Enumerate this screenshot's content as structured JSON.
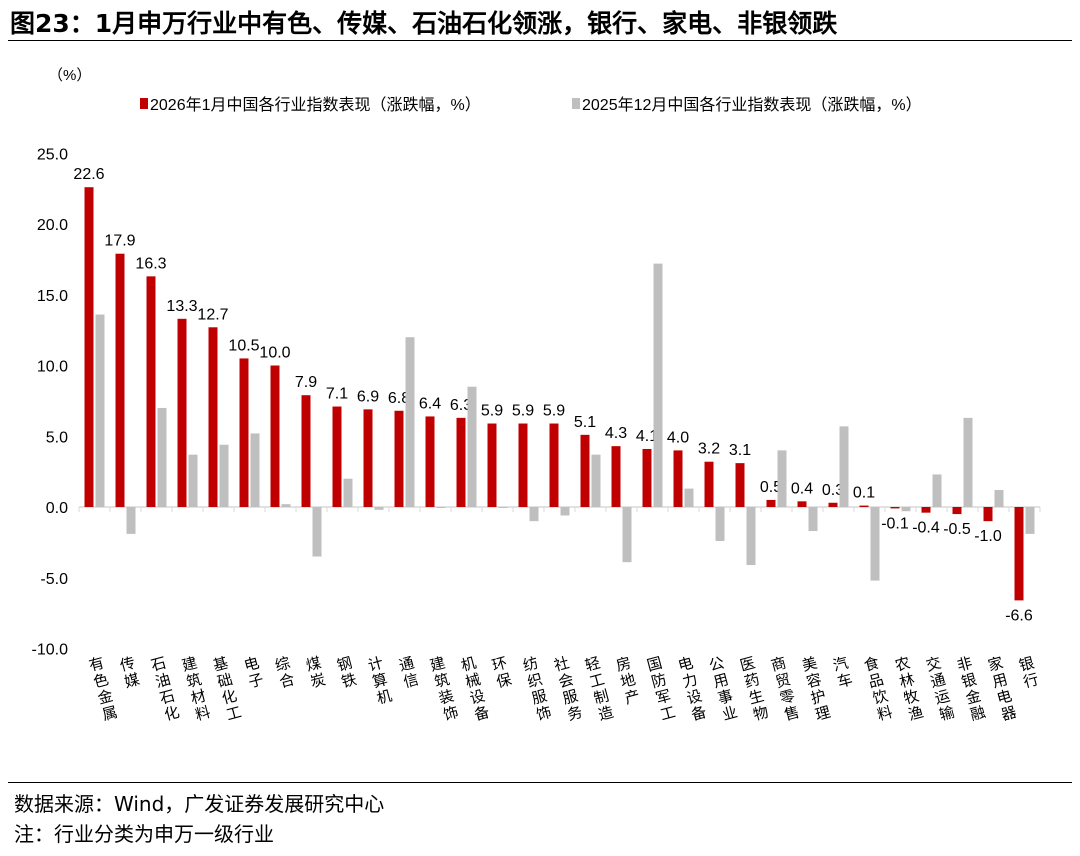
{
  "title": "图23：1月申万行业中有色、传媒、石油石化领涨，银行、家电、非银领跌",
  "footer": {
    "source": "数据来源：Wind，广发证券发展研究中心",
    "note": "注：行业分类为申万一级行业"
  },
  "chart_data": {
    "type": "bar",
    "ylabel": "（%）",
    "ylim": [
      -10,
      25
    ],
    "yticks": [
      "-10.0",
      "-5.0",
      "0.0",
      "5.0",
      "10.0",
      "15.0",
      "20.0",
      "25.0"
    ],
    "grid": false,
    "legend_position": "top",
    "categories": [
      "有色金属",
      "传媒",
      "石油石化",
      "建筑材料",
      "基础化工",
      "电子",
      "综合",
      "煤炭",
      "钢铁",
      "计算机",
      "通信",
      "建筑装饰",
      "机械设备",
      "环保",
      "纺织服饰",
      "社会服务",
      "轻工制造",
      "房地产",
      "国防军工",
      "电力设备",
      "公用事业",
      "医药生物",
      "商贸零售",
      "美容护理",
      "汽车",
      "食品饮料",
      "农林牧渔",
      "交通运输",
      "非银金融",
      "家用电器",
      "银行"
    ],
    "series": [
      {
        "name": "2026年1月中国各行业指数表现（涨跌幅，%）",
        "color": "#C00000",
        "data_labels": true,
        "values": [
          22.6,
          17.9,
          16.3,
          13.3,
          12.7,
          10.5,
          10.0,
          7.9,
          7.1,
          6.9,
          6.8,
          6.4,
          6.3,
          5.9,
          5.9,
          5.9,
          5.1,
          4.3,
          4.1,
          4.0,
          3.2,
          3.1,
          0.5,
          0.4,
          0.3,
          0.1,
          -0.1,
          -0.4,
          -0.5,
          -1.0,
          -6.6
        ]
      },
      {
        "name": "2025年12月中国各行业指数表现（涨跌幅，%）",
        "color": "#BFBFBF",
        "data_labels": false,
        "values": [
          13.6,
          -1.9,
          7.0,
          3.7,
          4.4,
          5.2,
          0.2,
          -3.5,
          2.0,
          -0.2,
          12.0,
          0.0,
          8.5,
          0.0,
          -1.0,
          -0.6,
          3.7,
          -3.9,
          17.2,
          1.3,
          -2.4,
          -4.1,
          4.0,
          -1.7,
          5.7,
          -5.2,
          -0.3,
          2.3,
          6.3,
          1.2,
          -1.9
        ]
      }
    ]
  }
}
